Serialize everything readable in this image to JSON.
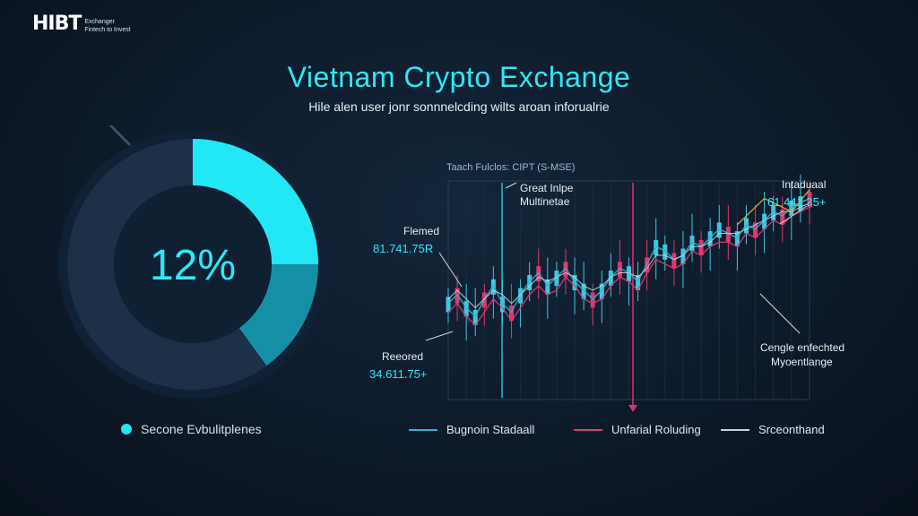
{
  "logo": {
    "mark": "HIBT",
    "line1": "Exchanger",
    "line2": "Fintech to Invest"
  },
  "title": "Vietnam Crypto Exchange",
  "subtitle": "Hile alen user jonr sonnnelcding wilts aroan inforualrie",
  "gauge": {
    "value_label": "12%",
    "segments": [
      {
        "fraction": 0.25,
        "color": "#22e7f5"
      },
      {
        "fraction": 0.15,
        "color": "#1590a6"
      },
      {
        "fraction": 0.6,
        "color": "#1c3048"
      }
    ],
    "legend_label": "Secone Evbulitplenes",
    "legend_color": "#22e7f5"
  },
  "chart_data": {
    "type": "line",
    "title": "Taach Fulclos: CIPT (S-MSE)",
    "x": [
      0,
      1,
      2,
      3,
      4,
      5,
      6,
      7,
      8,
      9,
      10,
      11,
      12,
      13,
      14,
      15,
      16,
      17,
      18,
      19,
      20,
      21,
      22,
      23,
      24,
      25,
      26,
      27,
      28,
      29,
      30,
      31,
      32,
      33,
      34,
      35,
      36,
      37,
      38,
      39,
      40
    ],
    "xlim": [
      0,
      40
    ],
    "ylim": [
      0,
      100
    ],
    "series": [
      {
        "name": "Bugnoin Stadaall",
        "color": "#2ab7d6",
        "values": [
          44,
          48,
          42,
          38,
          46,
          52,
          44,
          40,
          48,
          54,
          58,
          52,
          56,
          60,
          54,
          50,
          46,
          50,
          56,
          60,
          58,
          54,
          62,
          70,
          68,
          64,
          66,
          72,
          70,
          74,
          78,
          76,
          74,
          80,
          78,
          82,
          86,
          84,
          88,
          90,
          92
        ]
      },
      {
        "name": "Unfarial Roluding",
        "color": "#e23a6e",
        "values": [
          40,
          44,
          38,
          34,
          40,
          46,
          42,
          36,
          42,
          48,
          52,
          48,
          50,
          56,
          52,
          46,
          44,
          46,
          52,
          56,
          54,
          50,
          58,
          64,
          62,
          60,
          62,
          68,
          66,
          70,
          72,
          72,
          70,
          76,
          74,
          78,
          82,
          80,
          84,
          86,
          88
        ]
      },
      {
        "name": "Srceonthand",
        "color": "#c9d3dc",
        "values": [
          46,
          50,
          46,
          42,
          46,
          50,
          48,
          44,
          48,
          52,
          56,
          54,
          56,
          58,
          56,
          52,
          50,
          52,
          56,
          58,
          58,
          56,
          60,
          66,
          66,
          64,
          66,
          70,
          70,
          72,
          76,
          76,
          76,
          78,
          80,
          82,
          84,
          86,
          86,
          88,
          90
        ]
      }
    ],
    "annotations": [
      {
        "label": "Flemed",
        "value": "81.741.75R"
      },
      {
        "label": "Great Inlpe Multinetae"
      },
      {
        "label": "Intaduaal",
        "value": "61.441.35+"
      },
      {
        "label": "Reeored",
        "value": "34.611.75+"
      },
      {
        "label": "Cengle enfechted Myoentlange"
      }
    ]
  },
  "legend": [
    {
      "label": "Bugnoin Stadaall",
      "color": "#2ab7d6"
    },
    {
      "label": "Unfarial Roluding",
      "color": "#e23a6e"
    },
    {
      "label": "Srceonthand",
      "color": "#c9d3dc"
    }
  ]
}
